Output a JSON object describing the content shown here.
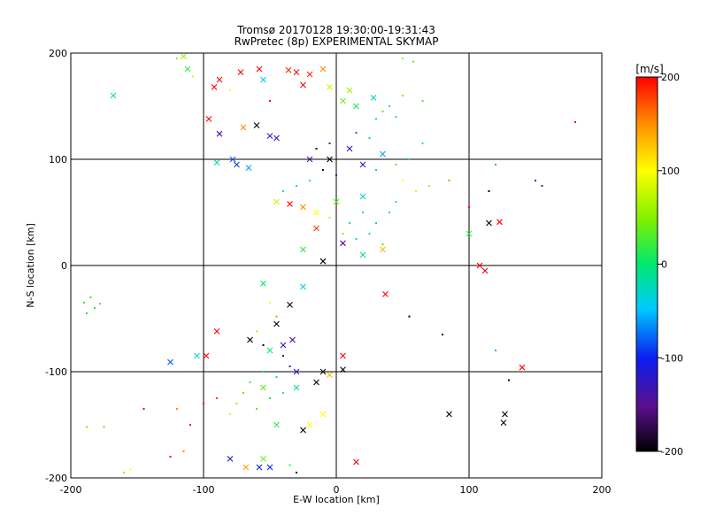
{
  "chart_data": {
    "type": "scatter",
    "title": "Tromsø 20170128 19:30:00-19:31:43",
    "subtitle": "RwPretec (8p) EXPERIMENTAL SKYMAP",
    "xlabel": "E-W location [km]",
    "ylabel": "N-S location [km]",
    "xlim": [
      -200,
      200
    ],
    "ylim": [
      -200,
      200
    ],
    "xticks": [
      "-200",
      "-100",
      "0",
      "100",
      "200"
    ],
    "yticks": [
      "-200",
      "-100",
      "0",
      "100",
      "200"
    ],
    "grid": true,
    "colorbar": {
      "label": "[m/s]",
      "range": [
        -200,
        200
      ],
      "ticks": [
        "200",
        "100",
        "0",
        "-100",
        "-200"
      ]
    },
    "series": [
      {
        "marker": "x",
        "points": [
          {
            "x": -168,
            "y": 160,
            "v": 0
          },
          {
            "x": -112,
            "y": 185,
            "v": 20
          },
          {
            "x": -115,
            "y": 197,
            "v": 60
          },
          {
            "x": -88,
            "y": 175,
            "v": 200
          },
          {
            "x": -92,
            "y": 168,
            "v": 200
          },
          {
            "x": -72,
            "y": 182,
            "v": 200
          },
          {
            "x": -58,
            "y": 185,
            "v": 200
          },
          {
            "x": -55,
            "y": 175,
            "v": -50
          },
          {
            "x": -36,
            "y": 184,
            "v": 180
          },
          {
            "x": -30,
            "y": 182,
            "v": 200
          },
          {
            "x": -20,
            "y": 180,
            "v": 190
          },
          {
            "x": -10,
            "y": 185,
            "v": 150
          },
          {
            "x": -25,
            "y": 170,
            "v": 200
          },
          {
            "x": -5,
            "y": 168,
            "v": 80
          },
          {
            "x": 5,
            "y": 155,
            "v": 40
          },
          {
            "x": 15,
            "y": 150,
            "v": 10
          },
          {
            "x": 28,
            "y": 158,
            "v": -20
          },
          {
            "x": 10,
            "y": 165,
            "v": 60
          },
          {
            "x": -96,
            "y": 138,
            "v": 200
          },
          {
            "x": -70,
            "y": 130,
            "v": 150
          },
          {
            "x": -88,
            "y": 124,
            "v": -160
          },
          {
            "x": -60,
            "y": 132,
            "v": -200
          },
          {
            "x": -50,
            "y": 122,
            "v": -140
          },
          {
            "x": -45,
            "y": 120,
            "v": -120
          },
          {
            "x": -78,
            "y": 100,
            "v": -80
          },
          {
            "x": -75,
            "y": 95,
            "v": -90
          },
          {
            "x": -66,
            "y": 92,
            "v": -60
          },
          {
            "x": -90,
            "y": 97,
            "v": -20
          },
          {
            "x": -20,
            "y": 100,
            "v": -170
          },
          {
            "x": -5,
            "y": 100,
            "v": -200
          },
          {
            "x": 10,
            "y": 110,
            "v": -150
          },
          {
            "x": 20,
            "y": 95,
            "v": -120
          },
          {
            "x": 35,
            "y": 105,
            "v": -60
          },
          {
            "x": -45,
            "y": 60,
            "v": 80
          },
          {
            "x": -35,
            "y": 58,
            "v": 200
          },
          {
            "x": -25,
            "y": 55,
            "v": 150
          },
          {
            "x": -15,
            "y": 50,
            "v": 100
          },
          {
            "x": 0,
            "y": 60,
            "v": 40
          },
          {
            "x": 20,
            "y": 65,
            "v": -40
          },
          {
            "x": -15,
            "y": 35,
            "v": 180
          },
          {
            "x": 5,
            "y": 21,
            "v": -160
          },
          {
            "x": -25,
            "y": 15,
            "v": 20
          },
          {
            "x": -10,
            "y": 4,
            "v": -200
          },
          {
            "x": 20,
            "y": 10,
            "v": 0
          },
          {
            "x": 35,
            "y": 15,
            "v": 130
          },
          {
            "x": 100,
            "y": 30,
            "v": 20
          },
          {
            "x": 115,
            "y": 40,
            "v": -200
          },
          {
            "x": 123,
            "y": 41,
            "v": 200
          },
          {
            "x": 108,
            "y": 0,
            "v": 200
          },
          {
            "x": 112,
            "y": -5,
            "v": 200
          },
          {
            "x": 37,
            "y": -27,
            "v": 200
          },
          {
            "x": -55,
            "y": -17,
            "v": 0
          },
          {
            "x": -25,
            "y": -20,
            "v": -40
          },
          {
            "x": -35,
            "y": -37,
            "v": -200
          },
          {
            "x": -45,
            "y": -55,
            "v": -200
          },
          {
            "x": -90,
            "y": -62,
            "v": 200
          },
          {
            "x": -65,
            "y": -70,
            "v": -200
          },
          {
            "x": -50,
            "y": -80,
            "v": 0
          },
          {
            "x": -40,
            "y": -75,
            "v": -150
          },
          {
            "x": -33,
            "y": -70,
            "v": -160
          },
          {
            "x": -125,
            "y": -91,
            "v": -80
          },
          {
            "x": -105,
            "y": -85,
            "v": -40
          },
          {
            "x": -98,
            "y": -85,
            "v": 200
          },
          {
            "x": -30,
            "y": -100,
            "v": -130
          },
          {
            "x": -10,
            "y": -100,
            "v": -200
          },
          {
            "x": 5,
            "y": -98,
            "v": -200
          },
          {
            "x": 5,
            "y": -85,
            "v": 200
          },
          {
            "x": -5,
            "y": -103,
            "v": 130
          },
          {
            "x": 140,
            "y": -96,
            "v": 200
          },
          {
            "x": -30,
            "y": -115,
            "v": -20
          },
          {
            "x": -15,
            "y": -110,
            "v": -200
          },
          {
            "x": -55,
            "y": -115,
            "v": 40
          },
          {
            "x": -20,
            "y": -150,
            "v": 100
          },
          {
            "x": -10,
            "y": -140,
            "v": 100
          },
          {
            "x": -25,
            "y": -155,
            "v": -200
          },
          {
            "x": -45,
            "y": -150,
            "v": 20
          },
          {
            "x": 85,
            "y": -140,
            "v": -200
          },
          {
            "x": 127,
            "y": -140,
            "v": -200
          },
          {
            "x": 126,
            "y": -148,
            "v": -200
          },
          {
            "x": -80,
            "y": -182,
            "v": -110
          },
          {
            "x": -55,
            "y": -182,
            "v": 40
          },
          {
            "x": -58,
            "y": -190,
            "v": -100
          },
          {
            "x": -50,
            "y": -190,
            "v": -100
          },
          {
            "x": -68,
            "y": -190,
            "v": 140
          },
          {
            "x": 15,
            "y": -185,
            "v": 200
          }
        ]
      },
      {
        "marker": "dot",
        "points": [
          {
            "x": -120,
            "y": 195,
            "v": 60
          },
          {
            "x": -108,
            "y": 178,
            "v": 110
          },
          {
            "x": -80,
            "y": 165,
            "v": 100
          },
          {
            "x": -50,
            "y": 155,
            "v": 200
          },
          {
            "x": 50,
            "y": 195,
            "v": 60
          },
          {
            "x": 58,
            "y": 192,
            "v": 40
          },
          {
            "x": 35,
            "y": 145,
            "v": 40
          },
          {
            "x": 45,
            "y": 140,
            "v": 20
          },
          {
            "x": 40,
            "y": 150,
            "v": 0
          },
          {
            "x": 30,
            "y": 138,
            "v": -20
          },
          {
            "x": 50,
            "y": 160,
            "v": 50
          },
          {
            "x": 65,
            "y": 155,
            "v": 30
          },
          {
            "x": 180,
            "y": 135,
            "v": 200
          },
          {
            "x": 120,
            "y": 95,
            "v": -60
          },
          {
            "x": 150,
            "y": 80,
            "v": -140
          },
          {
            "x": 155,
            "y": 75,
            "v": -160
          },
          {
            "x": 115,
            "y": 70,
            "v": -200
          },
          {
            "x": 100,
            "y": 55,
            "v": 200
          },
          {
            "x": 85,
            "y": 80,
            "v": 150
          },
          {
            "x": 70,
            "y": 75,
            "v": 120
          },
          {
            "x": 60,
            "y": 70,
            "v": 110
          },
          {
            "x": 50,
            "y": 80,
            "v": 100
          },
          {
            "x": 45,
            "y": 60,
            "v": 20
          },
          {
            "x": 40,
            "y": 50,
            "v": 0
          },
          {
            "x": 30,
            "y": 40,
            "v": -10
          },
          {
            "x": 25,
            "y": 30,
            "v": 10
          },
          {
            "x": 35,
            "y": 20,
            "v": 30
          },
          {
            "x": 15,
            "y": 25,
            "v": 0
          },
          {
            "x": 10,
            "y": 40,
            "v": -30
          },
          {
            "x": 20,
            "y": 50,
            "v": 20
          },
          {
            "x": 5,
            "y": 30,
            "v": 50
          },
          {
            "x": -5,
            "y": 45,
            "v": 120
          },
          {
            "x": -30,
            "y": 75,
            "v": -40
          },
          {
            "x": -40,
            "y": 70,
            "v": -20
          },
          {
            "x": -20,
            "y": 80,
            "v": 0
          },
          {
            "x": -10,
            "y": 90,
            "v": -190
          },
          {
            "x": 0,
            "y": 85,
            "v": -140
          },
          {
            "x": 25,
            "y": 120,
            "v": 0
          },
          {
            "x": 15,
            "y": 125,
            "v": -80
          },
          {
            "x": -5,
            "y": 115,
            "v": -160
          },
          {
            "x": -15,
            "y": 110,
            "v": -200
          },
          {
            "x": 30,
            "y": 90,
            "v": -30
          },
          {
            "x": 55,
            "y": 100,
            "v": -10
          },
          {
            "x": 45,
            "y": 95,
            "v": 30
          },
          {
            "x": 65,
            "y": 115,
            "v": 20
          },
          {
            "x": -190,
            "y": -35,
            "v": 20
          },
          {
            "x": -185,
            "y": -30,
            "v": 10
          },
          {
            "x": -182,
            "y": -40,
            "v": 20
          },
          {
            "x": -188,
            "y": -45,
            "v": 0
          },
          {
            "x": -178,
            "y": -36,
            "v": 30
          },
          {
            "x": 55,
            "y": -48,
            "v": -200
          },
          {
            "x": 80,
            "y": -65,
            "v": -200
          },
          {
            "x": -50,
            "y": -35,
            "v": 100
          },
          {
            "x": -45,
            "y": -48,
            "v": 150
          },
          {
            "x": -60,
            "y": -62,
            "v": 120
          },
          {
            "x": -55,
            "y": -75,
            "v": -200
          },
          {
            "x": -40,
            "y": -85,
            "v": -180
          },
          {
            "x": -35,
            "y": -95,
            "v": -160
          },
          {
            "x": -45,
            "y": -105,
            "v": -20
          },
          {
            "x": -55,
            "y": -100,
            "v": 0
          },
          {
            "x": -65,
            "y": -110,
            "v": 20
          },
          {
            "x": -70,
            "y": -120,
            "v": 40
          },
          {
            "x": -75,
            "y": -130,
            "v": 60
          },
          {
            "x": -80,
            "y": -140,
            "v": 80
          },
          {
            "x": -60,
            "y": -135,
            "v": 30
          },
          {
            "x": -50,
            "y": -125,
            "v": 10
          },
          {
            "x": -40,
            "y": -120,
            "v": 20
          },
          {
            "x": -90,
            "y": -125,
            "v": 180
          },
          {
            "x": -100,
            "y": -130,
            "v": 200
          },
          {
            "x": -110,
            "y": -150,
            "v": 200
          },
          {
            "x": -120,
            "y": -135,
            "v": 150
          },
          {
            "x": -145,
            "y": -135,
            "v": 200
          },
          {
            "x": -125,
            "y": -180,
            "v": 200
          },
          {
            "x": -115,
            "y": -175,
            "v": 150
          },
          {
            "x": -188,
            "y": -152,
            "v": 50
          },
          {
            "x": -175,
            "y": -152,
            "v": 30
          },
          {
            "x": -160,
            "y": -195,
            "v": 60
          },
          {
            "x": -155,
            "y": -192,
            "v": 100
          },
          {
            "x": -35,
            "y": -188,
            "v": 20
          },
          {
            "x": -30,
            "y": -195,
            "v": -200
          },
          {
            "x": 130,
            "y": -108,
            "v": -200
          },
          {
            "x": 120,
            "y": -80,
            "v": -60
          }
        ]
      }
    ]
  }
}
